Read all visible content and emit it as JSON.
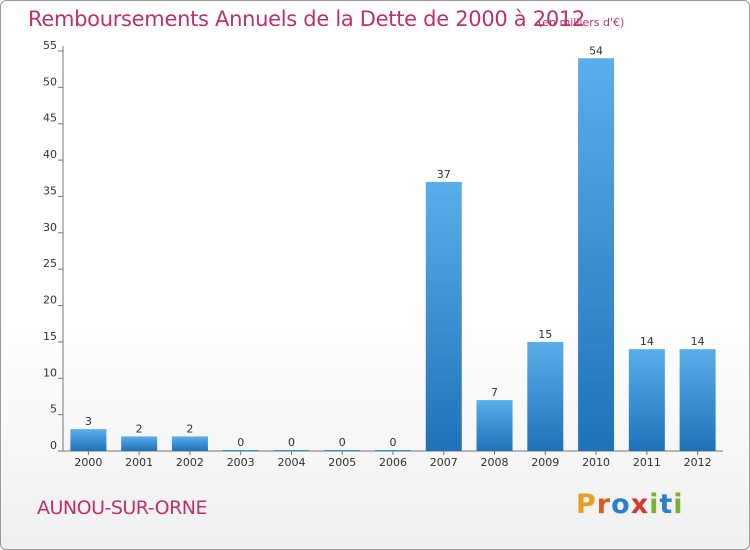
{
  "chart_data": {
    "type": "bar",
    "title": "Remboursements Annuels de la Dette de 2000 à 2012",
    "unit": "(en milliers d'€)",
    "categories": [
      "2000",
      "2001",
      "2002",
      "2003",
      "2004",
      "2005",
      "2006",
      "2007",
      "2008",
      "2009",
      "2010",
      "2011",
      "2012"
    ],
    "values": [
      3,
      2,
      2,
      0,
      0,
      0,
      0,
      37,
      7,
      15,
      54,
      14,
      14
    ],
    "ylim": [
      0,
      55
    ],
    "yticks": [
      0,
      5,
      10,
      15,
      20,
      25,
      30,
      35,
      40,
      45,
      50,
      55
    ],
    "grid": false,
    "bar_color": "#3a8fd4"
  },
  "commune": "AUNOU-SUR-ORNE",
  "logo": {
    "text": "Proxiti"
  }
}
